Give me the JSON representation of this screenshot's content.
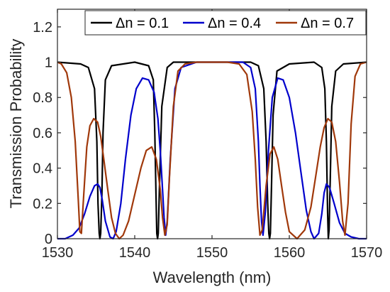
{
  "chart_data": {
    "type": "line",
    "xlabel": "Wavelength (nm)",
    "ylabel": "Transmission Probability",
    "xlim": [
      1530,
      1570
    ],
    "ylim": [
      0,
      1.3
    ],
    "xticks": [
      1530,
      1540,
      1550,
      1560,
      1570
    ],
    "yticks": [
      0,
      0.2,
      0.4,
      0.6,
      0.8,
      1,
      1.2
    ],
    "grid": false,
    "legend_position": "top-right",
    "series": [
      {
        "name": "Δn = 0.1",
        "color": "#000000",
        "x": [
          1530,
          1533.0,
          1534.0,
          1534.8,
          1535.1,
          1535.25,
          1535.4,
          1535.5,
          1535.6,
          1535.75,
          1535.9,
          1536.2,
          1537,
          1540,
          1541.8,
          1542.4,
          1542.6,
          1542.75,
          1542.85,
          1542.95,
          1543.05,
          1543.2,
          1543.5,
          1544.2,
          1545,
          1550,
          1555,
          1556.0,
          1556.7,
          1557.0,
          1557.2,
          1557.35,
          1557.45,
          1557.55,
          1557.7,
          1557.9,
          1558.4,
          1560,
          1563.2,
          1564.2,
          1564.6,
          1564.8,
          1564.95,
          1565.05,
          1565.15,
          1565.3,
          1565.5,
          1566.0,
          1567,
          1570
        ],
        "y": [
          1,
          0.99,
          0.97,
          0.85,
          0.55,
          0.2,
          0.03,
          0,
          0.03,
          0.25,
          0.6,
          0.9,
          0.98,
          1,
          0.98,
          0.9,
          0.6,
          0.25,
          0.03,
          0,
          0.03,
          0.3,
          0.75,
          0.97,
          1,
          1,
          1,
          0.98,
          0.85,
          0.55,
          0.2,
          0.03,
          0,
          0.03,
          0.3,
          0.7,
          0.95,
          0.99,
          1,
          0.97,
          0.85,
          0.55,
          0.15,
          0,
          0.05,
          0.35,
          0.75,
          0.95,
          0.99,
          1
        ]
      },
      {
        "name": "Δn = 0.4",
        "color": "#0000cc",
        "x": [
          1530,
          1531.0,
          1532.0,
          1532.8,
          1533.5,
          1534.2,
          1534.8,
          1535.2,
          1535.5,
          1535.8,
          1536.2,
          1536.8,
          1537.2,
          1537.6,
          1538.2,
          1538.8,
          1539.5,
          1540.2,
          1541,
          1541.8,
          1542.5,
          1543.0,
          1543.3,
          1543.6,
          1543.8,
          1544.0,
          1544.2,
          1544.6,
          1545.2,
          1546,
          1548,
          1550,
          1552,
          1554,
          1555.0,
          1555.6,
          1556.0,
          1556.2,
          1556.4,
          1556.6,
          1556.9,
          1557.3,
          1557.8,
          1558.5,
          1559.2,
          1560,
          1560.8,
          1561.5,
          1562.2,
          1562.8,
          1563.2,
          1563.8,
          1564.2,
          1564.5,
          1564.8,
          1565.2,
          1565.8,
          1566.5,
          1567.2,
          1568,
          1569,
          1570
        ],
        "y": [
          0,
          0,
          0.02,
          0.06,
          0.14,
          0.24,
          0.3,
          0.31,
          0.29,
          0.22,
          0.1,
          0.01,
          0,
          0.04,
          0.2,
          0.45,
          0.7,
          0.85,
          0.91,
          0.9,
          0.83,
          0.68,
          0.5,
          0.28,
          0.12,
          0.02,
          0.1,
          0.45,
          0.85,
          0.97,
          1,
          1,
          1,
          1,
          0.97,
          0.85,
          0.55,
          0.3,
          0.1,
          0.02,
          0.15,
          0.5,
          0.8,
          0.91,
          0.9,
          0.8,
          0.6,
          0.38,
          0.16,
          0.04,
          0,
          0.03,
          0.14,
          0.26,
          0.31,
          0.29,
          0.2,
          0.09,
          0.03,
          0.01,
          0,
          0
        ]
      },
      {
        "name": "Δn = 0.7",
        "color": "#a0380a",
        "x": [
          1530,
          1530.5,
          1531.2,
          1531.8,
          1532.3,
          1532.7,
          1532.9,
          1533.1,
          1533.4,
          1533.8,
          1534.2,
          1534.7,
          1535.2,
          1535.6,
          1536.0,
          1536.5,
          1537.0,
          1537.5,
          1538.0,
          1538.5,
          1539.2,
          1540.0,
          1540.8,
          1541.5,
          1542.2,
          1542.8,
          1543.3,
          1543.6,
          1543.9,
          1544.2,
          1544.5,
          1545.0,
          1545.6,
          1546.5,
          1548,
          1550,
          1552,
          1553.5,
          1554.5,
          1555.2,
          1555.6,
          1555.9,
          1556.2,
          1556.5,
          1557.0,
          1557.5,
          1558.0,
          1558.5,
          1559.0,
          1559.5,
          1560.0,
          1561.0,
          1562.0,
          1562.8,
          1563.4,
          1564.0,
          1564.5,
          1565.0,
          1565.5,
          1566.0,
          1566.5,
          1566.9,
          1567.2,
          1567.6,
          1568.0,
          1568.5,
          1569.2,
          1570
        ],
        "y": [
          1,
          0.99,
          0.94,
          0.8,
          0.55,
          0.22,
          0.04,
          0.03,
          0.25,
          0.52,
          0.64,
          0.68,
          0.66,
          0.58,
          0.45,
          0.28,
          0.12,
          0.03,
          0,
          0.02,
          0.1,
          0.25,
          0.4,
          0.5,
          0.52,
          0.45,
          0.28,
          0.12,
          0.02,
          0.08,
          0.35,
          0.75,
          0.95,
          0.99,
          1,
          1,
          1,
          0.99,
          0.93,
          0.72,
          0.45,
          0.18,
          0.02,
          0.05,
          0.3,
          0.48,
          0.52,
          0.45,
          0.3,
          0.15,
          0.04,
          0,
          0.05,
          0.18,
          0.35,
          0.52,
          0.63,
          0.68,
          0.66,
          0.55,
          0.32,
          0.1,
          0.02,
          0.2,
          0.65,
          0.92,
          0.99,
          1
        ]
      }
    ]
  },
  "colors": {
    "axis": "#262626",
    "background": "#ffffff"
  }
}
